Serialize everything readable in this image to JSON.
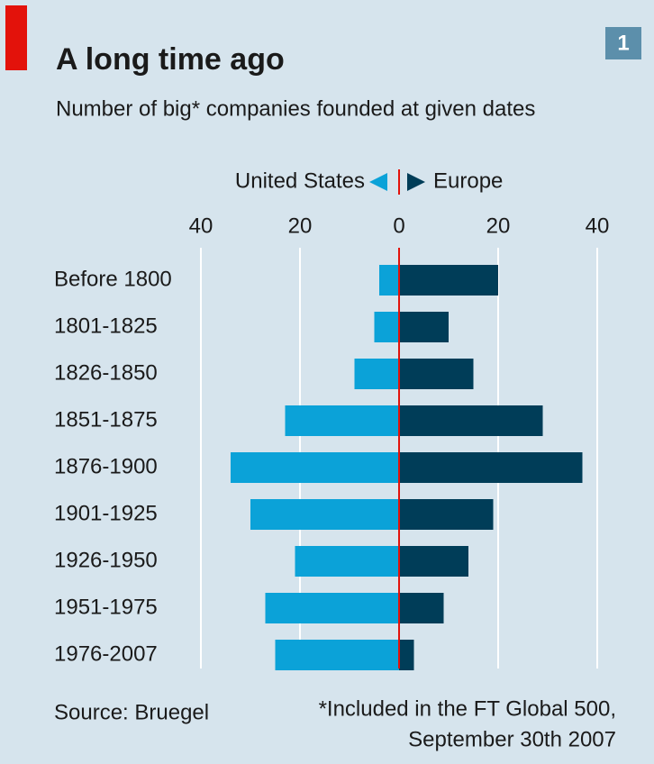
{
  "chart_data": {
    "type": "butterfly",
    "title": "A long time ago",
    "subtitle": "Number of big* companies founded at given dates",
    "badge": "1",
    "categories": [
      "Before 1800",
      "1801-1825",
      "1826-1850",
      "1851-1875",
      "1876-1900",
      "1901-1925",
      "1926-1950",
      "1951-1975",
      "1976-2007"
    ],
    "series": [
      {
        "name": "United States",
        "color": "#0ba2d8",
        "values": [
          -4,
          -5,
          -9,
          -23,
          -34,
          -30,
          -21,
          -27,
          -25
        ]
      },
      {
        "name": "Europe",
        "color": "#003d58",
        "values": [
          20,
          10,
          15,
          29,
          37,
          19,
          14,
          9,
          3
        ]
      }
    ],
    "xlim": [
      -40,
      40
    ],
    "xticks": [
      {
        "value": -40,
        "label": "40"
      },
      {
        "value": -20,
        "label": "20"
      },
      0,
      20,
      40
    ],
    "grid": true,
    "footnote": [
      "*Included in the FT Global 500,",
      "September 30th 2007"
    ],
    "source": "Source: Bruegel"
  }
}
